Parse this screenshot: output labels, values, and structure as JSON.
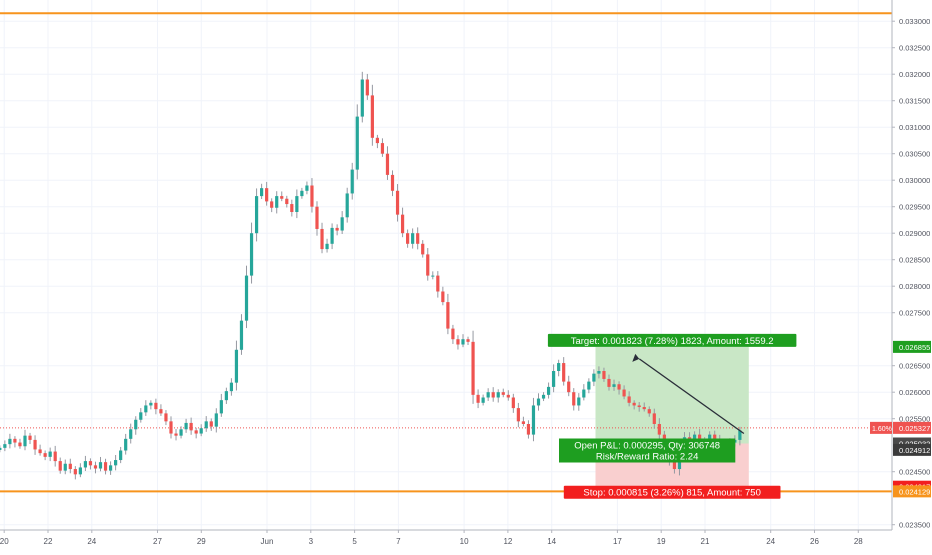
{
  "chart_data": {
    "type": "candlestick",
    "grid": true,
    "colors": {
      "up": "#26a69a",
      "down": "#ef5350",
      "profit_zone": "#c9e7c6",
      "loss_zone": "#f9cfcf",
      "target_label_bg": "#1e9e20",
      "stop_label_bg": "#f21f1f",
      "pnl_label_bg": "#1e9e20",
      "horizontal_line": "#f7941d",
      "price_marker": "#ef5350"
    },
    "y_axis": {
      "min": 0.0234,
      "max": 0.0334,
      "ticks": [
        "0.033000",
        "0.032500",
        "0.032000",
        "0.031500",
        "0.031000",
        "0.030500",
        "0.030000",
        "0.029500",
        "0.029000",
        "0.028500",
        "0.028000",
        "0.027500",
        "0.026500",
        "0.026000",
        "0.025500",
        "0.024500",
        "0.023500"
      ]
    },
    "x_axis": {
      "labels": [
        {
          "text": "20",
          "day": -2
        },
        {
          "text": "22",
          "day": 0
        },
        {
          "text": "24",
          "day": 2
        },
        {
          "text": "27",
          "day": 5
        },
        {
          "text": "29",
          "day": 7
        },
        {
          "text": "Jun",
          "day": 10
        },
        {
          "text": "3",
          "day": 12
        },
        {
          "text": "5",
          "day": 14
        },
        {
          "text": "7",
          "day": 16
        },
        {
          "text": "10",
          "day": 19
        },
        {
          "text": "12",
          "day": 21
        },
        {
          "text": "14",
          "day": 23
        },
        {
          "text": "17",
          "day": 26
        },
        {
          "text": "19",
          "day": 28
        },
        {
          "text": "21",
          "day": 30
        },
        {
          "text": "24",
          "day": 33
        },
        {
          "text": "26",
          "day": 35
        },
        {
          "text": "28",
          "day": 37
        }
      ]
    },
    "horizontal_lines": [
      {
        "value": 0.033151,
        "label": "0.033151"
      },
      {
        "value": 0.024129,
        "label": "0.024129"
      }
    ],
    "price_markers": [
      {
        "value": 0.026855,
        "label": "0.026855",
        "bg": "#1e9e20"
      },
      {
        "value": 0.025327,
        "label": "0.025327",
        "prefix": "1.60%",
        "bg": "#ef5350"
      },
      {
        "value": 0.025032,
        "label": "0.025032",
        "bg": "#4a4a4a"
      },
      {
        "value": 0.024912,
        "label": "0.024912",
        "bg": "#3b3b3b"
      },
      {
        "value": 0.024217,
        "label": "0.024217",
        "bg": "#f21f1f"
      },
      {
        "value": 0.024129,
        "label": "0.024129",
        "bg": "#f7941d"
      }
    ],
    "position": {
      "entry": 0.025032,
      "target": 0.026855,
      "stop": 0.024217,
      "start_day": 25,
      "end_day": 32,
      "target_label": "Target: 0.001823 (7.28%) 1823, Amount: 1559.2",
      "stop_label": "Stop: 0.000815 (3.26%) 815, Amount: 750",
      "pnl_label": "Open P&L: 0.000295, Qty: 306748",
      "rr_label": "Risk/Reward Ratio: 2.24"
    },
    "candles_start_day": -2.2,
    "candles_per_day": 4.35,
    "close_series": [
      0.02495,
      0.02502,
      0.02512,
      0.02505,
      0.02498,
      0.02518,
      0.0251,
      0.02492,
      0.02485,
      0.02478,
      0.02488,
      0.0247,
      0.02452,
      0.02465,
      0.02455,
      0.02445,
      0.02458,
      0.0247,
      0.02462,
      0.02456,
      0.02468,
      0.02452,
      0.02462,
      0.02472,
      0.0249,
      0.02512,
      0.0253,
      0.02548,
      0.02562,
      0.02575,
      0.0258,
      0.02568,
      0.0256,
      0.02545,
      0.02522,
      0.02518,
      0.0253,
      0.02542,
      0.02528,
      0.02522,
      0.02532,
      0.02545,
      0.02535,
      0.0256,
      0.02585,
      0.02602,
      0.02618,
      0.0268,
      0.02735,
      0.0282,
      0.029,
      0.0297,
      0.02985,
      0.0296,
      0.02948,
      0.0297,
      0.02965,
      0.02955,
      0.0294,
      0.0297,
      0.0298,
      0.0299,
      0.0295,
      0.02908,
      0.0287,
      0.0288,
      0.0291,
      0.02905,
      0.0293,
      0.02975,
      0.0302,
      0.0312,
      0.0319,
      0.0316,
      0.0308,
      0.0307,
      0.0305,
      0.0301,
      0.0298,
      0.02935,
      0.029,
      0.0288,
      0.029,
      0.0288,
      0.0286,
      0.0282,
      0.0282,
      0.0279,
      0.0277,
      0.0272,
      0.027,
      0.0269,
      0.027,
      0.02695,
      0.02595,
      0.0258,
      0.0259,
      0.026,
      0.0259,
      0.026,
      0.02595,
      0.0259,
      0.0257,
      0.02545,
      0.0254,
      0.0252,
      0.02575,
      0.02588,
      0.02595,
      0.0261,
      0.0264,
      0.02655,
      0.0262,
      0.026,
      0.02575,
      0.0259,
      0.02605,
      0.0262,
      0.02635,
      0.0264,
      0.02625,
      0.0261,
      0.02615,
      0.02605,
      0.02592,
      0.0258,
      0.02575,
      0.02572,
      0.02568,
      0.0256,
      0.0254,
      0.0252,
      0.025,
      0.0247,
      0.02455,
      0.0249,
      0.02515,
      0.02505,
      0.0252,
      0.0249,
      0.02505,
      0.0252,
      0.0251,
      0.025,
      0.0249,
      0.02505,
      0.0251,
      0.02528
    ]
  }
}
